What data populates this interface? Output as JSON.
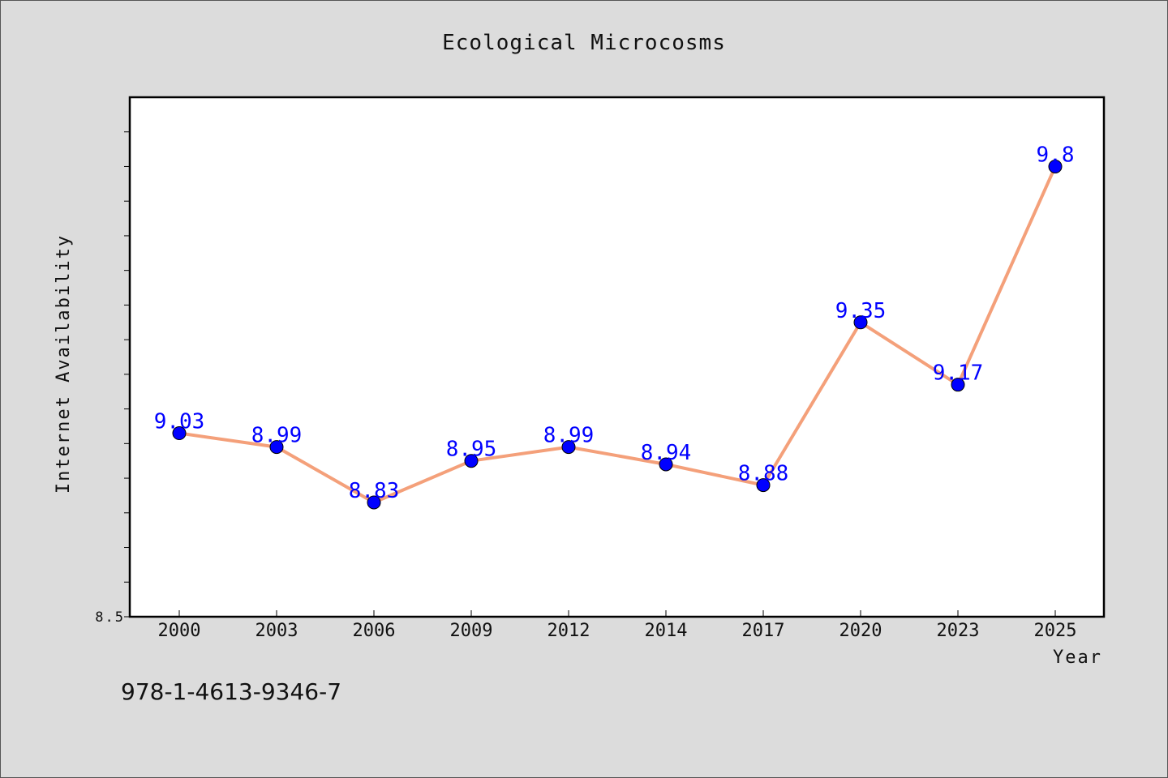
{
  "chart_data": {
    "type": "line",
    "title": "Ecological Microcosms",
    "xlabel": "Year",
    "ylabel": "Internet Availability",
    "categories": [
      "2000",
      "2003",
      "2006",
      "2009",
      "2012",
      "2014",
      "2017",
      "2020",
      "2023",
      "2025"
    ],
    "series": [
      {
        "values": [
          9.03,
          8.99,
          8.83,
          8.95,
          8.99,
          8.94,
          8.88,
          9.35,
          9.17,
          9.8
        ],
        "data_labels": [
          "9.03",
          "8.99",
          "8.83",
          "8.95",
          "8.99",
          "8.94",
          "8.88",
          "9.35",
          "9.17",
          "9.8"
        ],
        "line_color": "#f4a07a",
        "marker_color": "#0000ff"
      }
    ],
    "ylim": [
      8.5,
      10.0
    ],
    "ytick_labels": [
      "8.5"
    ],
    "grid": false,
    "legend": "none"
  },
  "footer": {
    "isbn": "978-1-4613-9346-7"
  },
  "colors": {
    "background": "#dcdcdc",
    "plot_area": "#ffffff",
    "line": "#f4a07a",
    "marker": "#0000ff",
    "data_label": "#0000ff"
  }
}
